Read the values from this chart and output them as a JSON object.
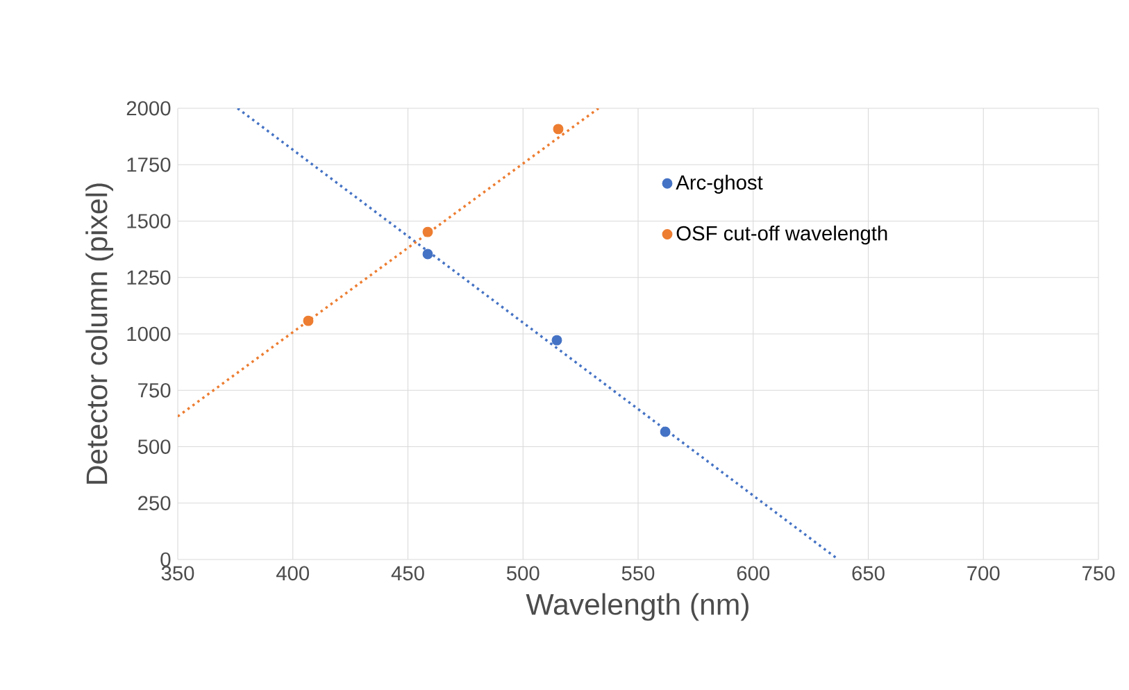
{
  "chart_data": {
    "type": "scatter",
    "xlabel": "Wavelength (nm)",
    "ylabel": "Detector column (pixel)",
    "xlim": [
      350,
      750
    ],
    "xticks": [
      350,
      400,
      450,
      500,
      550,
      600,
      650,
      700,
      750
    ],
    "ylim": [
      0,
      2000
    ],
    "yticks": [
      0,
      250,
      500,
      750,
      1000,
      1250,
      1500,
      1750,
      2000
    ],
    "grid": true,
    "legend": "right",
    "series": [
      {
        "name": "Arc-ghost",
        "marker": "circle",
        "color": "#4472c4",
        "x": [
          458.6,
          514.7,
          561.8
        ],
        "values": [
          1354,
          972,
          566
        ]
      },
      {
        "name": "OSF cut-off wavelength",
        "marker": "circle",
        "color": "#ed7d31",
        "x": [
          406.7,
          458.6,
          515.3
        ],
        "values": [
          1058,
          1452,
          1908
        ]
      },
      {
        "type": "line",
        "marker": "none",
        "line_style": "dotted",
        "color": "#4472c4",
        "x": [
          376,
          637
        ],
        "values": [
          2000,
          0
        ]
      },
      {
        "type": "line",
        "marker": "none",
        "line_style": "dotted",
        "color": "#ed7d31",
        "x": [
          350,
          532.8
        ],
        "values": [
          634,
          2000
        ]
      }
    ]
  }
}
